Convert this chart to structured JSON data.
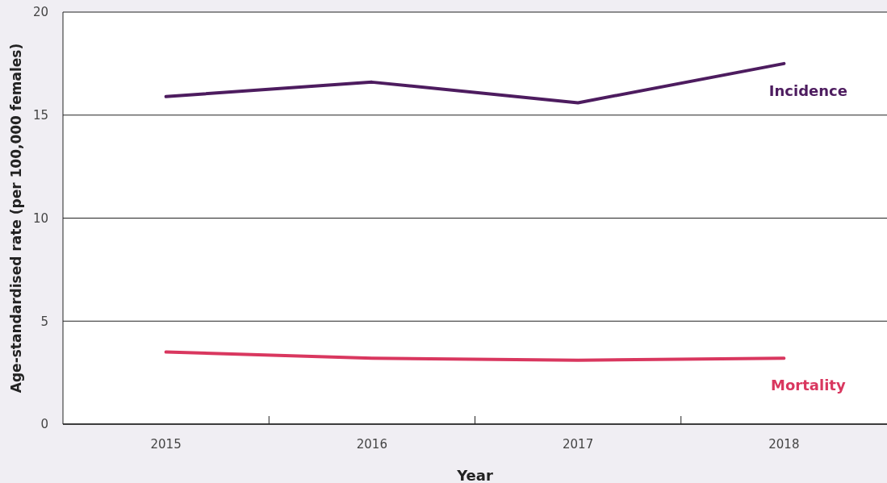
{
  "chart_data": {
    "type": "line",
    "xlabel": "Year",
    "ylabel": "Age-standardised rate (per 100,000 females)",
    "categories": [
      "2015",
      "2016",
      "2017",
      "2018"
    ],
    "series": [
      {
        "name": "Incidence",
        "color": "#4d1c5f",
        "values": [
          15.9,
          16.6,
          15.6,
          17.5
        ]
      },
      {
        "name": "Mortality",
        "color": "#d9375f",
        "values": [
          3.5,
          3.2,
          3.1,
          3.2
        ]
      }
    ],
    "ylim": [
      0,
      20
    ],
    "yticks": [
      0,
      5,
      10,
      15,
      20
    ],
    "grid": "y",
    "marker": "none",
    "line_style": "solid"
  }
}
